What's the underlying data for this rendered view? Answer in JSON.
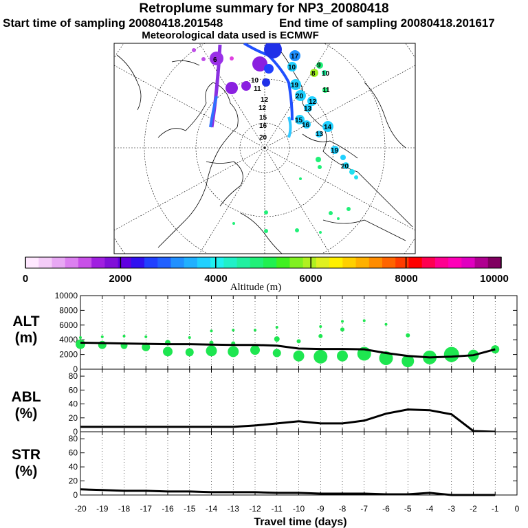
{
  "title": "Retroplume summary for NP3_20080418",
  "start_time": "Start time of sampling 20080418.201548",
  "end_time": "End time of sampling 20080418.201617",
  "met_data": "Meteorological data used is ECMWF",
  "colorbar": {
    "label": "Altitude (m)",
    "ticks": [
      "0",
      "2000",
      "4000",
      "6000",
      "8000",
      "10000"
    ],
    "colors": [
      "#ffe8ff",
      "#f4ccf8",
      "#e8a8f4",
      "#dc80f0",
      "#c850e8",
      "#a020e0",
      "#8010d8",
      "#6000e0",
      "#3010f0",
      "#2040ff",
      "#2060ff",
      "#2090ff",
      "#20b0ff",
      "#20d0ff",
      "#20f0f0",
      "#20f0c8",
      "#20f0a0",
      "#20f078",
      "#20f050",
      "#40f020",
      "#80f020",
      "#b0f020",
      "#e0f020",
      "#fff000",
      "#ffd000",
      "#ffb000",
      "#ff8c00",
      "#ff6400",
      "#ff3c00",
      "#ff0000",
      "#ff0050",
      "#ff0090",
      "#ff00b8",
      "#e000c0",
      "#b00090",
      "#800060"
    ]
  },
  "map": {
    "labels": [
      "6",
      "17",
      "10",
      "9",
      "8",
      "10",
      "11",
      "19",
      "20",
      "12",
      "13",
      "15",
      "16",
      "14",
      "13",
      "19",
      "20",
      "12",
      "11",
      "10",
      "12",
      "15",
      "16",
      "20"
    ]
  },
  "xaxis": {
    "label": "Travel time (days)",
    "ticks": [
      "-20",
      "-19",
      "-18",
      "-17",
      "-16",
      "-15",
      "-14",
      "-13",
      "-12",
      "-11",
      "-10",
      "-9",
      "-8",
      "-7",
      "-6",
      "-5",
      "-4",
      "-3",
      "-2",
      "-1",
      "0"
    ]
  },
  "chart_data": [
    {
      "type": "line",
      "panel": "ALT",
      "ylabel_line1": "ALT",
      "ylabel_line2": "(m)",
      "ylim": [
        0,
        10000
      ],
      "yticks": [
        "0",
        "2000",
        "4000",
        "6000",
        "8000",
        "10000"
      ],
      "x": [
        -20,
        -19,
        -18,
        -17,
        -16,
        -15,
        -14,
        -13,
        -12,
        -11,
        -10,
        -9,
        -8,
        -7,
        -6,
        -5,
        -4,
        -3,
        -2,
        -1
      ],
      "values": [
        3600,
        3550,
        3500,
        3450,
        3400,
        3400,
        3350,
        3300,
        3300,
        3200,
        2800,
        2750,
        2750,
        2700,
        2200,
        1800,
        1600,
        1700,
        1900,
        2700
      ],
      "bubbles": [
        {
          "x": -20,
          "y": 3400,
          "r": 7
        },
        {
          "x": -20,
          "y": 4300,
          "r": 2
        },
        {
          "x": -19,
          "y": 3300,
          "r": 6
        },
        {
          "x": -19,
          "y": 4400,
          "r": 2
        },
        {
          "x": -18,
          "y": 3200,
          "r": 5
        },
        {
          "x": -18,
          "y": 4500,
          "r": 2
        },
        {
          "x": -17,
          "y": 3000,
          "r": 6
        },
        {
          "x": -17,
          "y": 4400,
          "r": 2
        },
        {
          "x": -16,
          "y": 2400,
          "r": 7
        },
        {
          "x": -16,
          "y": 3600,
          "r": 4
        },
        {
          "x": -15,
          "y": 2300,
          "r": 6
        },
        {
          "x": -15,
          "y": 4300,
          "r": 2
        },
        {
          "x": -14,
          "y": 2500,
          "r": 8
        },
        {
          "x": -14,
          "y": 3600,
          "r": 3
        },
        {
          "x": -14,
          "y": 5200,
          "r": 2
        },
        {
          "x": -13,
          "y": 2400,
          "r": 8
        },
        {
          "x": -13,
          "y": 3500,
          "r": 3
        },
        {
          "x": -13,
          "y": 5300,
          "r": 2
        },
        {
          "x": -12,
          "y": 2600,
          "r": 7
        },
        {
          "x": -12,
          "y": 5300,
          "r": 2
        },
        {
          "x": -11,
          "y": 2200,
          "r": 6
        },
        {
          "x": -11,
          "y": 4100,
          "r": 4
        },
        {
          "x": -11,
          "y": 5700,
          "r": 2
        },
        {
          "x": -10,
          "y": 1800,
          "r": 8
        },
        {
          "x": -10,
          "y": 3800,
          "r": 3
        },
        {
          "x": -9,
          "y": 1700,
          "r": 10
        },
        {
          "x": -9,
          "y": 4500,
          "r": 3
        },
        {
          "x": -9,
          "y": 5800,
          "r": 2
        },
        {
          "x": -8,
          "y": 1800,
          "r": 8
        },
        {
          "x": -8,
          "y": 5400,
          "r": 3
        },
        {
          "x": -8,
          "y": 6500,
          "r": 2
        },
        {
          "x": -7,
          "y": 2100,
          "r": 10
        },
        {
          "x": -7,
          "y": 6600,
          "r": 2
        },
        {
          "x": -6,
          "y": 1500,
          "r": 10
        },
        {
          "x": -6,
          "y": 6100,
          "r": 2
        },
        {
          "x": -5,
          "y": 1100,
          "r": 9
        },
        {
          "x": -5,
          "y": 4600,
          "r": 3
        },
        {
          "x": -4,
          "y": 1600,
          "r": 10
        },
        {
          "x": -3,
          "y": 2000,
          "r": 11
        },
        {
          "x": -3,
          "y": 1300,
          "r": 4
        },
        {
          "x": -2,
          "y": 1900,
          "r": 8
        },
        {
          "x": -2,
          "y": 1300,
          "r": 4
        },
        {
          "x": -1,
          "y": 2700,
          "r": 6
        }
      ]
    },
    {
      "type": "line",
      "panel": "ABL",
      "ylabel_line1": "ABL",
      "ylabel_line2": "(%)",
      "ylim": [
        0,
        90
      ],
      "yticks": [
        "0",
        "20",
        "40",
        "60",
        "80"
      ],
      "x": [
        -20,
        -19,
        -18,
        -17,
        -16,
        -15,
        -14,
        -13,
        -12,
        -11,
        -10,
        -9,
        -8,
        -7,
        -6,
        -5,
        -4,
        -3,
        -2,
        -1
      ],
      "values": [
        7,
        7,
        7,
        7,
        7,
        7,
        7,
        7,
        9,
        12,
        15,
        12,
        12,
        16,
        26,
        32,
        31,
        25,
        1,
        0
      ]
    },
    {
      "type": "line",
      "panel": "STR",
      "ylabel_line1": "STR",
      "ylabel_line2": "(%)",
      "ylim": [
        0,
        90
      ],
      "yticks": [
        "0",
        "20",
        "40",
        "60",
        "80"
      ],
      "x": [
        -20,
        -19,
        -18,
        -17,
        -16,
        -15,
        -14,
        -13,
        -12,
        -11,
        -10,
        -9,
        -8,
        -7,
        -6,
        -5,
        -4,
        -3,
        -2,
        -1
      ],
      "values": [
        8,
        7,
        6,
        6,
        5,
        5,
        4,
        4,
        4,
        3,
        3,
        2,
        2,
        2,
        1,
        1,
        3,
        0,
        0,
        0
      ]
    }
  ]
}
